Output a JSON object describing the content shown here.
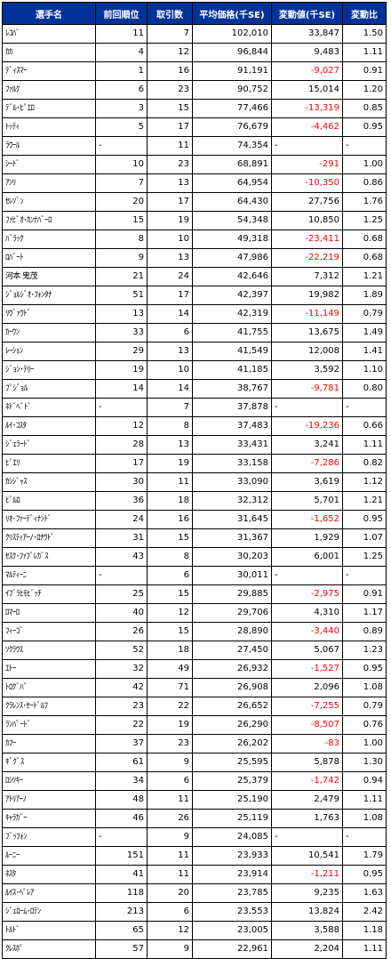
{
  "headers": [
    "選手名",
    "前回順位",
    "取引数",
    "平均価格(千SE)",
    "変動値(千SE)",
    "変動比"
  ],
  "rows": [
    {
      "name": "ﾚｺﾊﾞ",
      "prev": "11",
      "trades": "7",
      "avg": "102,010",
      "change": "33,847",
      "ratio": "1.50"
    },
    {
      "name": "ｶｶ",
      "prev": "4",
      "trades": "12",
      "avg": "96,844",
      "change": "9,483",
      "ratio": "1.11"
    },
    {
      "name": "ﾃﾞｨｽﾏｰ",
      "prev": "1",
      "trades": "16",
      "avg": "91,191",
      "change": "-9,027",
      "ratio": "0.91"
    },
    {
      "name": "ﾌｧﾙｸ",
      "prev": "6",
      "trades": "23",
      "avg": "90,752",
      "change": "15,014",
      "ratio": "1.20"
    },
    {
      "name": "ﾃﾞﾙ･ﾋﾟｴﾛ",
      "prev": "3",
      "trades": "15",
      "avg": "77,466",
      "change": "-13,319",
      "ratio": "0.85"
    },
    {
      "name": "ﾄｯﾃｨ",
      "prev": "5",
      "trades": "17",
      "avg": "76,679",
      "change": "-4,462",
      "ratio": "0.95"
    },
    {
      "name": "ﾗｳｰﾙ",
      "prev": "-",
      "trades": "11",
      "avg": "74,354",
      "change": "-",
      "ratio": "-"
    },
    {
      "name": "ｼｰﾄﾞ",
      "prev": "10",
      "trades": "23",
      "avg": "68,891",
      "change": "-291",
      "ratio": "1.00"
    },
    {
      "name": "ｱﾝﾘ",
      "prev": "7",
      "trades": "13",
      "avg": "64,954",
      "change": "-10,350",
      "ratio": "0.86"
    },
    {
      "name": "ｾﾚｿﾞﾝ",
      "prev": "20",
      "trades": "17",
      "avg": "64,430",
      "change": "27,756",
      "ratio": "1.76"
    },
    {
      "name": "ﾌｧﾋﾞｵ･ｶﾝﾅﾊﾞｰﾛ",
      "prev": "15",
      "trades": "19",
      "avg": "54,348",
      "change": "10,850",
      "ratio": "1.25"
    },
    {
      "name": "ﾊﾞﾗｯｸ",
      "prev": "8",
      "trades": "10",
      "avg": "49,318",
      "change": "-23,411",
      "ratio": "0.68"
    },
    {
      "name": "ﾛﾊﾞｰﾄ",
      "prev": "9",
      "trades": "13",
      "avg": "47,986",
      "change": "-22,219",
      "ratio": "0.68"
    },
    {
      "name": "河本 鬼茂",
      "prev": "21",
      "trades": "24",
      "avg": "42,646",
      "change": "7,312",
      "ratio": "1.21"
    },
    {
      "name": "ｼﾞｮﾙｼﾞｵ･ﾌｫﾝﾀﾅ",
      "prev": "51",
      "trades": "17",
      "avg": "42,397",
      "change": "19,982",
      "ratio": "1.89"
    },
    {
      "name": "ﾘｳﾞｧｳﾄﾞ",
      "prev": "13",
      "trades": "14",
      "avg": "42,319",
      "change": "-11,149",
      "ratio": "0.79"
    },
    {
      "name": "ｶｰｳﾝ",
      "prev": "33",
      "trades": "6",
      "avg": "41,755",
      "change": "13,675",
      "ratio": "1.49"
    },
    {
      "name": "ﾚｰｼｮﾝ",
      "prev": "29",
      "trades": "13",
      "avg": "41,549",
      "change": "12,008",
      "ratio": "1.41"
    },
    {
      "name": "ｼﾞｮﾝ･ﾃﾘｰ",
      "prev": "19",
      "trades": "10",
      "avg": "41,185",
      "change": "3,592",
      "ratio": "1.10"
    },
    {
      "name": "ﾌﾟｼﾞｮﾙ",
      "prev": "14",
      "trades": "14",
      "avg": "38,767",
      "change": "-9,781",
      "ratio": "0.80"
    },
    {
      "name": "ﾈﾄﾞﾍﾞﾄﾞ",
      "prev": "-",
      "trades": "7",
      "avg": "37,878",
      "change": "-",
      "ratio": "-"
    },
    {
      "name": "ﾙｲ･ｺｽﾀ",
      "prev": "12",
      "trades": "8",
      "avg": "37,483",
      "change": "-19,236",
      "ratio": "0.66"
    },
    {
      "name": "ｼﾞｪﾗｰﾄﾞ",
      "prev": "28",
      "trades": "13",
      "avg": "33,431",
      "change": "3,241",
      "ratio": "1.11"
    },
    {
      "name": "ﾋﾟｴﾘ",
      "prev": "17",
      "trades": "19",
      "avg": "33,158",
      "change": "-7,286",
      "ratio": "0.82"
    },
    {
      "name": "ｶｼｼﾞｬｽ",
      "prev": "30",
      "trades": "11",
      "avg": "33,090",
      "change": "3,619",
      "ratio": "1.12"
    },
    {
      "name": "ﾋﾟﾙﾛ",
      "prev": "36",
      "trades": "18",
      "avg": "32,312",
      "change": "5,701",
      "ratio": "1.21"
    },
    {
      "name": "ﾘｵ･ﾌｧｰﾃﾞｨﾅﾝﾄﾞ",
      "prev": "24",
      "trades": "16",
      "avg": "31,645",
      "change": "-1,652",
      "ratio": "0.95"
    },
    {
      "name": "ｸﾘｽﾃｨｱｰﾉ･ﾛﾅｳﾄﾞ",
      "prev": "31",
      "trades": "15",
      "avg": "31,367",
      "change": "1,929",
      "ratio": "1.07"
    },
    {
      "name": "ｾｽｸ･ﾌｧﾌﾞﾚｶﾞｽ",
      "prev": "43",
      "trades": "8",
      "avg": "30,203",
      "change": "6,001",
      "ratio": "1.25"
    },
    {
      "name": "ﾏﾙﾃｨｰﾆ",
      "prev": "-",
      "trades": "6",
      "avg": "30,011",
      "change": "-",
      "ratio": "-"
    },
    {
      "name": "ｲﾌﾞﾗﾋﾓﾋﾞｯﾁ",
      "prev": "25",
      "trades": "15",
      "avg": "29,885",
      "change": "-2,975",
      "ratio": "0.91"
    },
    {
      "name": "ﾛﾏｰﾛ",
      "prev": "40",
      "trades": "12",
      "avg": "29,706",
      "change": "4,310",
      "ratio": "1.17"
    },
    {
      "name": "ﾌｨｰｺﾞ",
      "prev": "26",
      "trades": "15",
      "avg": "28,890",
      "change": "-3,440",
      "ratio": "0.89"
    },
    {
      "name": "ｿｸﾗｳｽ",
      "prev": "52",
      "trades": "18",
      "avg": "27,450",
      "change": "5,067",
      "ratio": "1.23"
    },
    {
      "name": "ｴﾄｰ",
      "prev": "32",
      "trades": "49",
      "avg": "26,932",
      "change": "-1,527",
      "ratio": "0.95"
    },
    {
      "name": "ﾄﾛｸﾞﾊﾞ",
      "prev": "42",
      "trades": "71",
      "avg": "26,908",
      "change": "2,096",
      "ratio": "1.08"
    },
    {
      "name": "ｸﾗﾚﾝｽ･ｾｰﾄﾞﾙﾌ",
      "prev": "23",
      "trades": "22",
      "avg": "26,652",
      "change": "-7,255",
      "ratio": "0.79"
    },
    {
      "name": "ﾗﾝﾊﾟｰﾄﾞ",
      "prev": "22",
      "trades": "19",
      "avg": "26,290",
      "change": "-8,507",
      "ratio": "0.76"
    },
    {
      "name": "ｶﾌｰ",
      "prev": "37",
      "trades": "23",
      "avg": "26,202",
      "change": "-83",
      "ratio": "1.00"
    },
    {
      "name": "ｷﾞｸﾞｽ",
      "prev": "61",
      "trades": "9",
      "avg": "25,595",
      "change": "5,878",
      "ratio": "1.30"
    },
    {
      "name": "ﾛｼﾂｷｰ",
      "prev": "34",
      "trades": "6",
      "avg": "25,379",
      "change": "-1,742",
      "ratio": "0.94"
    },
    {
      "name": "ｱﾄﾘｱｰﾉ",
      "prev": "48",
      "trades": "11",
      "avg": "25,190",
      "change": "2,479",
      "ratio": "1.11"
    },
    {
      "name": "ｷｬﾗｶﾞｰ",
      "prev": "46",
      "trades": "26",
      "avg": "25,119",
      "change": "1,763",
      "ratio": "1.08"
    },
    {
      "name": "ﾌﾞｯﾌｫﾝ",
      "prev": "-",
      "trades": "9",
      "avg": "24,085",
      "change": "-",
      "ratio": "-"
    },
    {
      "name": "ﾙｰﾆｰ",
      "prev": "151",
      "trades": "11",
      "avg": "23,933",
      "change": "10,541",
      "ratio": "1.79"
    },
    {
      "name": "ﾈｽﾀ",
      "prev": "41",
      "trades": "11",
      "avg": "23,914",
      "change": "-1,211",
      "ratio": "0.95"
    },
    {
      "name": "ﾙｲｽ･ﾍﾟﾚｱ",
      "prev": "118",
      "trades": "20",
      "avg": "23,785",
      "change": "9,235",
      "ratio": "1.63"
    },
    {
      "name": "ｼﾞｪﾛｰﾑ･ﾛﾃﾝ",
      "prev": "213",
      "trades": "6",
      "avg": "23,553",
      "change": "13,824",
      "ratio": "2.42"
    },
    {
      "name": "ﾄﾙﾄﾞ",
      "prev": "65",
      "trades": "12",
      "avg": "23,005",
      "change": "3,588",
      "ratio": "1.18"
    },
    {
      "name": "ｸﾚｽﾎﾟ",
      "prev": "57",
      "trades": "9",
      "avg": "22,961",
      "change": "2,204",
      "ratio": "1.11"
    }
  ]
}
